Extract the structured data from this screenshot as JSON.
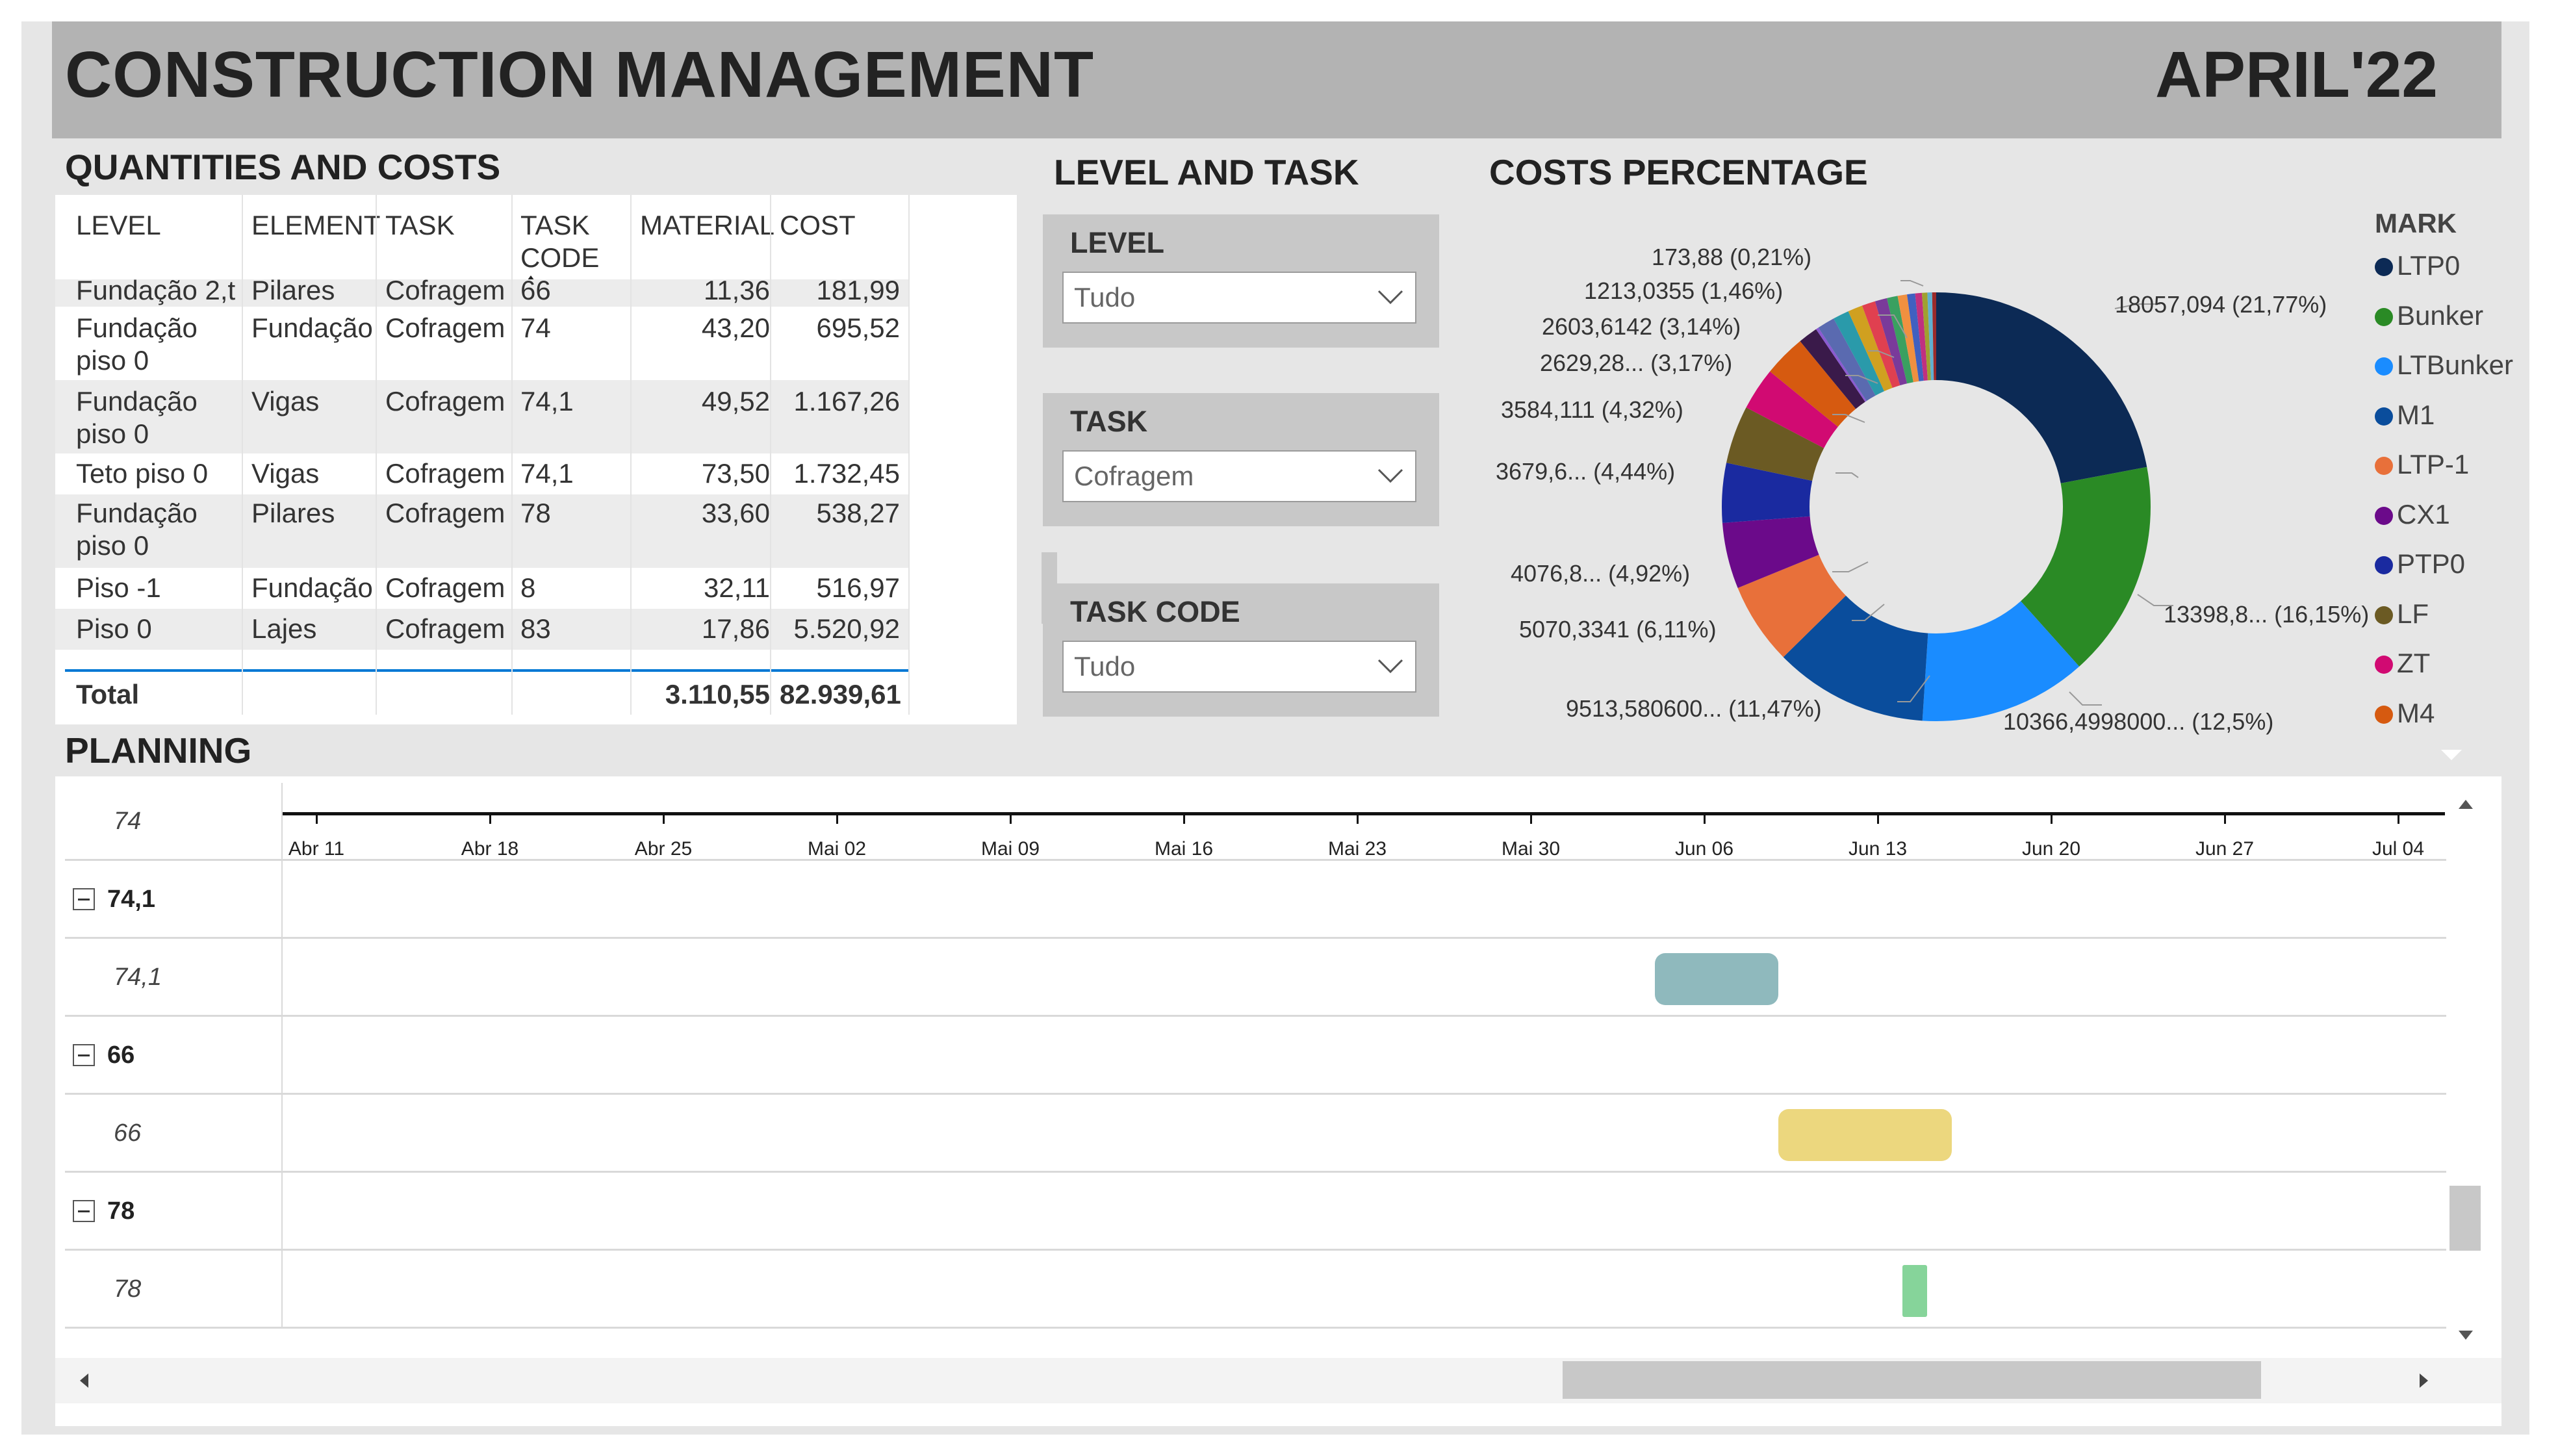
{
  "header": {
    "title": "CONSTRUCTION MANAGEMENT",
    "date": "APRIL'22"
  },
  "quantities": {
    "title": "QUANTITIES AND COSTS",
    "columns": [
      "LEVEL",
      "ELEMENT",
      "TASK",
      "TASK CODE",
      "MATERIAL",
      "COST"
    ],
    "partial_row": {
      "level": "Fundação 2,t",
      "element": "Pilares",
      "task": "Cofragem",
      "code": "66",
      "material": "11,36",
      "cost": "181,99"
    },
    "rows": [
      {
        "level": "Fundação piso 0",
        "element": "Fundação",
        "task": "Cofragem",
        "code": "74",
        "material": "43,20",
        "cost": "695,52"
      },
      {
        "level": "Fundação piso 0",
        "element": "Vigas",
        "task": "Cofragem",
        "code": "74,1",
        "material": "49,52",
        "cost": "1.167,26"
      },
      {
        "level": "Teto piso 0",
        "element": "Vigas",
        "task": "Cofragem",
        "code": "74,1",
        "material": "73,50",
        "cost": "1.732,45"
      },
      {
        "level": "Fundação piso 0",
        "element": "Pilares",
        "task": "Cofragem",
        "code": "78",
        "material": "33,60",
        "cost": "538,27"
      },
      {
        "level": "Piso -1",
        "element": "Fundação",
        "task": "Cofragem",
        "code": "8",
        "material": "32,11",
        "cost": "516,97"
      },
      {
        "level": "Piso 0",
        "element": "Lajes",
        "task": "Cofragem",
        "code": "83",
        "material": "17,86",
        "cost": "5.520,92"
      }
    ],
    "total": {
      "label": "Total",
      "material": "3.110,55",
      "cost": "82.939,61"
    }
  },
  "filters": {
    "title": "LEVEL AND TASK",
    "level": {
      "label": "LEVEL",
      "value": "Tudo"
    },
    "task": {
      "label": "TASK",
      "value": "Cofragem"
    },
    "task_code": {
      "label": "TASK CODE",
      "value": "Tudo"
    }
  },
  "costs": {
    "title": "COSTS PERCENTAGE",
    "legend_title": "MARK",
    "legend": [
      {
        "name": "LTP0",
        "color": "#0c2a55"
      },
      {
        "name": "Bunker",
        "color": "#2a8a25"
      },
      {
        "name": "LTBunker",
        "color": "#1a8cff"
      },
      {
        "name": "M1",
        "color": "#0a4d9c"
      },
      {
        "name": "LTP-1",
        "color": "#e8703a"
      },
      {
        "name": "CX1",
        "color": "#6b0a8a"
      },
      {
        "name": "PTP0",
        "color": "#1a2aa0"
      },
      {
        "name": "LF",
        "color": "#6b5a23"
      },
      {
        "name": "ZT",
        "color": "#d10a72"
      },
      {
        "name": "M4",
        "color": "#d65a10"
      }
    ]
  },
  "chart_data": {
    "type": "pie",
    "title": "COSTS PERCENTAGE",
    "legend_title": "MARK",
    "slices": [
      {
        "label": "LTP0",
        "display": "18057,094 (21,77%)",
        "percent": 21.77,
        "color": "#0c2a55"
      },
      {
        "label": "Bunker",
        "display": "13398,8... (16,15%)",
        "percent": 16.15,
        "color": "#2a8a25"
      },
      {
        "label": "LTBunker",
        "display": "10366,4998000... (12,5%)",
        "percent": 12.5,
        "color": "#1a8cff"
      },
      {
        "label": "M1",
        "display": "9513,580600... (11,47%)",
        "percent": 11.47,
        "color": "#0a4d9c"
      },
      {
        "label": "LTP-1",
        "display": "5070,3341 (6,11%)",
        "percent": 6.11,
        "color": "#e8703a"
      },
      {
        "label": "CX1",
        "display": "4076,8... (4,92%)",
        "percent": 4.92,
        "color": "#6b0a8a"
      },
      {
        "label": "PTP0",
        "display": "3679,6... (4,44%)",
        "percent": 4.44,
        "color": "#1a2aa0"
      },
      {
        "label": "LF",
        "display": "3584,111 (4,32%)",
        "percent": 4.32,
        "color": "#6b5a23"
      },
      {
        "label": "ZT",
        "display": "2629,28... (3,17%)",
        "percent": 3.17,
        "color": "#d10a72"
      },
      {
        "label": "M4",
        "display": "2603,6142 (3,14%)",
        "percent": 3.14,
        "color": "#d65a10"
      },
      {
        "label": "",
        "display": "1213,0355 (1,46%)",
        "percent": 1.46,
        "color": "#3a1a4a"
      },
      {
        "label": "",
        "display": "173,88 (0,21%)",
        "percent": 0.21,
        "color": "#8a5ad0"
      },
      {
        "label": "",
        "display": "",
        "percent": 1.3,
        "color": "#5a6ab0"
      },
      {
        "label": "",
        "display": "",
        "percent": 1.2,
        "color": "#2a9aaa"
      },
      {
        "label": "",
        "display": "",
        "percent": 1.1,
        "color": "#d0a020"
      },
      {
        "label": "",
        "display": "",
        "percent": 1.0,
        "color": "#e04050"
      },
      {
        "label": "",
        "display": "",
        "percent": 0.9,
        "color": "#7a3a9a"
      },
      {
        "label": "",
        "display": "",
        "percent": 0.8,
        "color": "#3aa060"
      },
      {
        "label": "",
        "display": "",
        "percent": 0.7,
        "color": "#f09040"
      },
      {
        "label": "",
        "display": "",
        "percent": 0.6,
        "color": "#4060c0"
      },
      {
        "label": "",
        "display": "",
        "percent": 0.5,
        "color": "#c03080"
      },
      {
        "label": "",
        "display": "",
        "percent": 0.4,
        "color": "#a0a030"
      },
      {
        "label": "",
        "display": "",
        "percent": 0.35,
        "color": "#60b0d0"
      },
      {
        "label": "",
        "display": "",
        "percent": 0.3,
        "color": "#9a2a2a"
      }
    ]
  },
  "planning": {
    "title": "PLANNING",
    "ticks": [
      "Abr 11",
      "Abr 18",
      "Abr 25",
      "Mai 02",
      "Mai 09",
      "Mai 16",
      "Mai 23",
      "Mai 30",
      "Jun 06",
      "Jun 13",
      "Jun 20",
      "Jun 27",
      "Jul 04"
    ],
    "tick_dates": [
      "2022-04-11",
      "2022-04-18",
      "2022-04-25",
      "2022-05-02",
      "2022-05-09",
      "2022-05-16",
      "2022-05-23",
      "2022-05-30",
      "2022-06-06",
      "2022-06-13",
      "2022-06-20",
      "2022-06-27",
      "2022-07-04"
    ],
    "rows": [
      {
        "label": "74",
        "kind": "sub"
      },
      {
        "label": "74,1",
        "kind": "group"
      },
      {
        "label": "74,1",
        "kind": "sub",
        "bar": {
          "start": "2022-06-04",
          "end": "2022-06-09",
          "color": "#8fb9bd"
        }
      },
      {
        "label": "66",
        "kind": "group"
      },
      {
        "label": "66",
        "kind": "sub",
        "bar": {
          "start": "2022-06-09",
          "end": "2022-06-16",
          "color": "#ecd77e"
        }
      },
      {
        "label": "78",
        "kind": "group"
      },
      {
        "label": "78",
        "kind": "sub",
        "bar": {
          "start": "2022-06-14",
          "end": "2022-06-15",
          "color": "#86d49a"
        }
      }
    ]
  }
}
